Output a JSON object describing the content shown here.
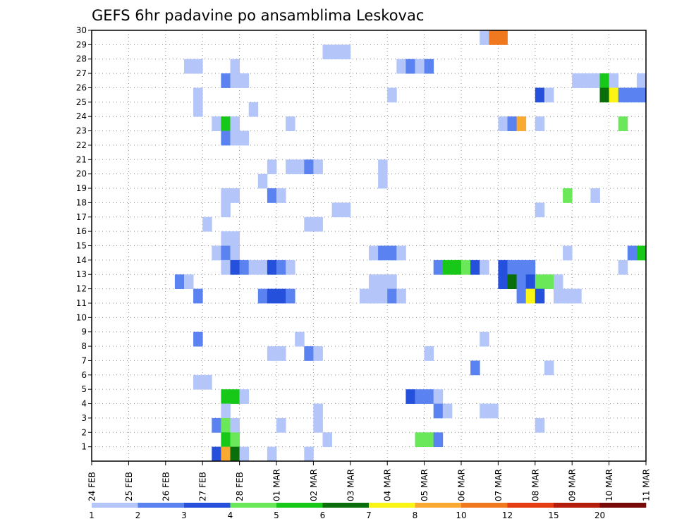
{
  "chart_data": {
    "type": "heatmap",
    "title": "GEFS 6hr padavine po ansamblima Leskovac",
    "xlabel": "",
    "ylabel": "",
    "x_ticks": [
      "24 FEB",
      "25 FEB",
      "26 FEB",
      "27 FEB",
      "28 FEB",
      "01 MAR",
      "02 MAR",
      "03 MAR",
      "04 MAR",
      "05 MAR",
      "06 MAR",
      "07 MAR",
      "08 MAR",
      "09 MAR",
      "10 MAR",
      "11 MAR"
    ],
    "x_range_steps": [
      0,
      60
    ],
    "y_ticks": [
      "1",
      "2",
      "3",
      "4",
      "5",
      "6",
      "7",
      "8",
      "9",
      "10",
      "11",
      "12",
      "13",
      "14",
      "15",
      "16",
      "17",
      "18",
      "19",
      "20",
      "21",
      "22",
      "23",
      "24",
      "25",
      "26",
      "27",
      "28",
      "29",
      "30"
    ],
    "y_range": [
      0,
      30
    ],
    "grid": true,
    "colorbar": {
      "labels": [
        "1",
        "2",
        "3",
        "4",
        "5",
        "6",
        "7",
        "8",
        "10",
        "12",
        "15",
        "20"
      ],
      "colors": [
        "#b4c6f9",
        "#5a82f0",
        "#2450dc",
        "#6ae85a",
        "#18c818",
        "#0a6e0a",
        "#faf514",
        "#faaa32",
        "#f0781e",
        "#e63c14",
        "#b41e0a",
        "#780a0a"
      ]
    },
    "cells": [
      {
        "m": 29,
        "t": [
          [
            42,
            1
          ],
          [
            43,
            9
          ],
          [
            44,
            9
          ]
        ]
      },
      {
        "m": 28,
        "t": [
          [
            25,
            1
          ],
          [
            26,
            1
          ],
          [
            27,
            1
          ]
        ]
      },
      {
        "m": 27,
        "t": [
          [
            10,
            1
          ],
          [
            11,
            1
          ],
          [
            15,
            1
          ],
          [
            33,
            1
          ],
          [
            34,
            2
          ],
          [
            35,
            1
          ],
          [
            36,
            2
          ]
        ]
      },
      {
        "m": 26,
        "t": [
          [
            14,
            2
          ],
          [
            15,
            1
          ],
          [
            16,
            1
          ],
          [
            52,
            1
          ],
          [
            53,
            1
          ],
          [
            54,
            1
          ],
          [
            55,
            5
          ],
          [
            56,
            1
          ],
          [
            59,
            1
          ]
        ]
      },
      {
        "m": 25,
        "t": [
          [
            11,
            1
          ],
          [
            32,
            1
          ],
          [
            48,
            3
          ],
          [
            49,
            1
          ],
          [
            55,
            6
          ],
          [
            56,
            7
          ],
          [
            57,
            2
          ],
          [
            58,
            2
          ],
          [
            59,
            2
          ]
        ]
      },
      {
        "m": 24,
        "t": [
          [
            11,
            1
          ],
          [
            17,
            1
          ]
        ]
      },
      {
        "m": 23,
        "t": [
          [
            13,
            1
          ],
          [
            14,
            5
          ],
          [
            15,
            1
          ],
          [
            21,
            1
          ],
          [
            44,
            1
          ],
          [
            45,
            2
          ],
          [
            46,
            8
          ],
          [
            48,
            1
          ],
          [
            57,
            4
          ]
        ]
      },
      {
        "m": 22,
        "t": [
          [
            14,
            2
          ],
          [
            15,
            1
          ],
          [
            16,
            1
          ]
        ]
      },
      {
        "m": 20,
        "t": [
          [
            19,
            1
          ],
          [
            21,
            1
          ],
          [
            22,
            1
          ],
          [
            23,
            2
          ],
          [
            24,
            1
          ],
          [
            31,
            1
          ]
        ]
      },
      {
        "m": 19,
        "t": [
          [
            31,
            1
          ],
          [
            18,
            1
          ]
        ]
      },
      {
        "m": 18,
        "t": [
          [
            14,
            1
          ],
          [
            15,
            1
          ],
          [
            19,
            2
          ],
          [
            20,
            1
          ],
          [
            51,
            4
          ],
          [
            54,
            1
          ]
        ]
      },
      {
        "m": 17,
        "t": [
          [
            14,
            1
          ],
          [
            26,
            1
          ],
          [
            27,
            1
          ],
          [
            48,
            1
          ]
        ]
      },
      {
        "m": 16,
        "t": [
          [
            12,
            1
          ],
          [
            23,
            1
          ],
          [
            24,
            1
          ]
        ]
      },
      {
        "m": 15,
        "t": [
          [
            14,
            1
          ],
          [
            15,
            1
          ]
        ]
      },
      {
        "m": 14,
        "t": [
          [
            13,
            1
          ],
          [
            14,
            2
          ],
          [
            15,
            1
          ],
          [
            30,
            1
          ],
          [
            31,
            2
          ],
          [
            32,
            2
          ],
          [
            33,
            1
          ],
          [
            51,
            1
          ],
          [
            58,
            2
          ],
          [
            59,
            5
          ]
        ]
      },
      {
        "m": 13,
        "t": [
          [
            14,
            1
          ],
          [
            15,
            3
          ],
          [
            16,
            2
          ],
          [
            17,
            1
          ],
          [
            18,
            1
          ],
          [
            19,
            3
          ],
          [
            20,
            2
          ],
          [
            21,
            1
          ],
          [
            37,
            2
          ],
          [
            38,
            5
          ],
          [
            39,
            5
          ],
          [
            40,
            4
          ],
          [
            41,
            3
          ],
          [
            42,
            1
          ],
          [
            44,
            3
          ],
          [
            45,
            2
          ],
          [
            46,
            2
          ],
          [
            47,
            2
          ],
          [
            57,
            1
          ]
        ]
      },
      {
        "m": 12,
        "t": [
          [
            9,
            2
          ],
          [
            10,
            1
          ],
          [
            30,
            1
          ],
          [
            31,
            1
          ],
          [
            32,
            1
          ],
          [
            44,
            3
          ],
          [
            45,
            6
          ],
          [
            46,
            2
          ],
          [
            47,
            3
          ],
          [
            48,
            4
          ],
          [
            49,
            4
          ],
          [
            50,
            1
          ]
        ]
      },
      {
        "m": 11,
        "t": [
          [
            11,
            2
          ],
          [
            18,
            2
          ],
          [
            19,
            3
          ],
          [
            20,
            3
          ],
          [
            21,
            2
          ],
          [
            29,
            1
          ],
          [
            30,
            1
          ],
          [
            31,
            1
          ],
          [
            32,
            2
          ],
          [
            33,
            1
          ],
          [
            46,
            2
          ],
          [
            47,
            7
          ],
          [
            48,
            3
          ],
          [
            50,
            1
          ],
          [
            51,
            1
          ],
          [
            52,
            1
          ]
        ]
      },
      {
        "m": 8,
        "t": [
          [
            11,
            2
          ],
          [
            22,
            1
          ],
          [
            42,
            1
          ]
        ]
      },
      {
        "m": 7,
        "t": [
          [
            19,
            1
          ],
          [
            20,
            1
          ],
          [
            23,
            2
          ],
          [
            24,
            1
          ],
          [
            36,
            1
          ]
        ]
      },
      {
        "m": 6,
        "t": [
          [
            41,
            2
          ],
          [
            49,
            1
          ]
        ]
      },
      {
        "m": 5,
        "t": [
          [
            11,
            1
          ],
          [
            12,
            1
          ]
        ]
      },
      {
        "m": 4,
        "t": [
          [
            14,
            5
          ],
          [
            15,
            5
          ],
          [
            16,
            1
          ],
          [
            34,
            3
          ],
          [
            35,
            2
          ],
          [
            36,
            2
          ],
          [
            37,
            1
          ]
        ]
      },
      {
        "m": 3,
        "t": [
          [
            14,
            1
          ],
          [
            24,
            1
          ],
          [
            37,
            2
          ],
          [
            38,
            1
          ],
          [
            42,
            1
          ],
          [
            43,
            1
          ]
        ]
      },
      {
        "m": 2,
        "t": [
          [
            13,
            2
          ],
          [
            14,
            4
          ],
          [
            15,
            1
          ],
          [
            20,
            1
          ],
          [
            24,
            1
          ],
          [
            48,
            1
          ]
        ]
      },
      {
        "m": 1,
        "t": [
          [
            14,
            5
          ],
          [
            15,
            4
          ],
          [
            25,
            1
          ],
          [
            35,
            4
          ],
          [
            36,
            4
          ],
          [
            37,
            2
          ]
        ]
      },
      {
        "m": 0,
        "t": [
          [
            13,
            3
          ],
          [
            14,
            8
          ],
          [
            15,
            6
          ],
          [
            16,
            1
          ],
          [
            19,
            1
          ],
          [
            23,
            1
          ]
        ]
      }
    ]
  }
}
